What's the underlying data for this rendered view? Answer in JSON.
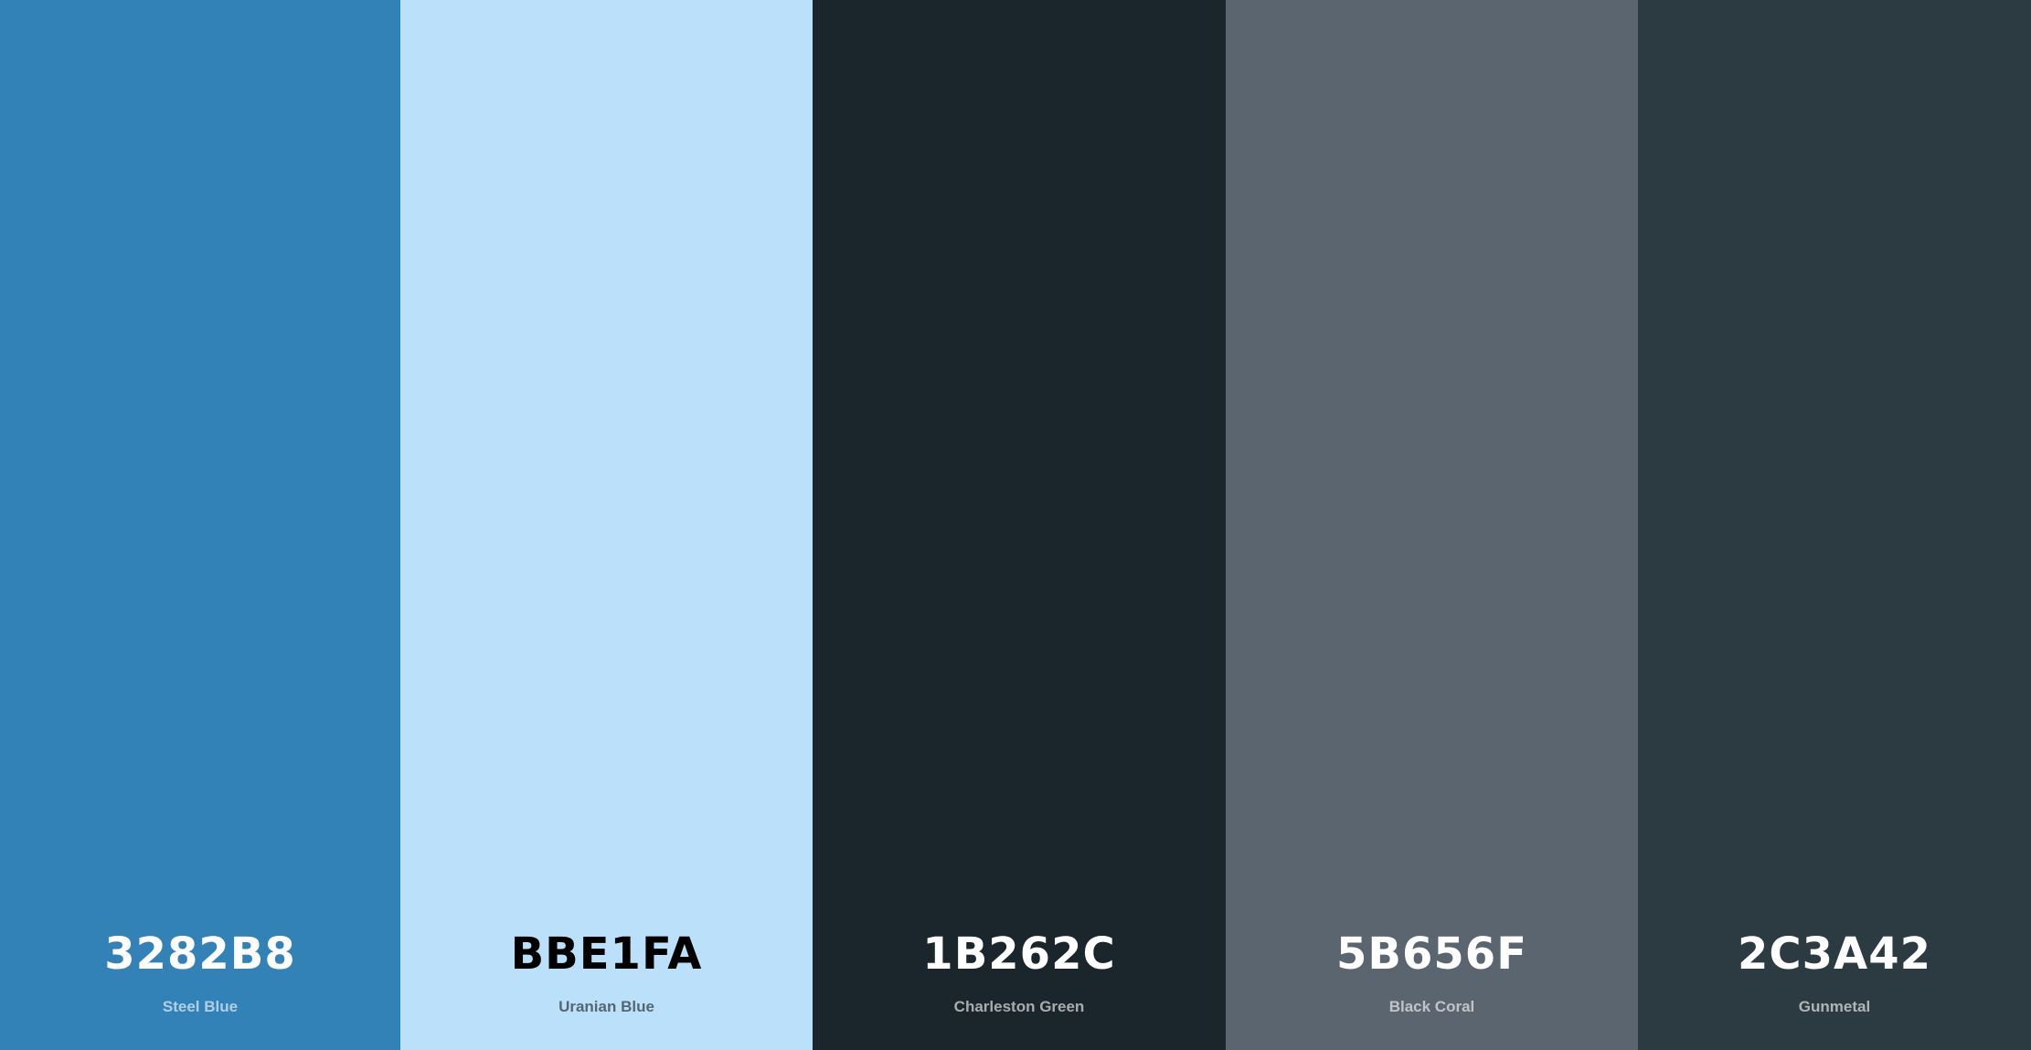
{
  "swatches": [
    {
      "hex": "3282B8",
      "name": "Steel Blue",
      "color": "#3282B8",
      "text_tone": "light"
    },
    {
      "hex": "BBE1FA",
      "name": "Uranian Blue",
      "color": "#BBE1FA",
      "text_tone": "dark"
    },
    {
      "hex": "1B262C",
      "name": "Charleston Green",
      "color": "#1B262C",
      "text_tone": "light"
    },
    {
      "hex": "5B656F",
      "name": "Black Coral",
      "color": "#5B656F",
      "text_tone": "light"
    },
    {
      "hex": "2C3A42",
      "name": "Gunmetal",
      "color": "#2C3A42",
      "text_tone": "light"
    }
  ]
}
